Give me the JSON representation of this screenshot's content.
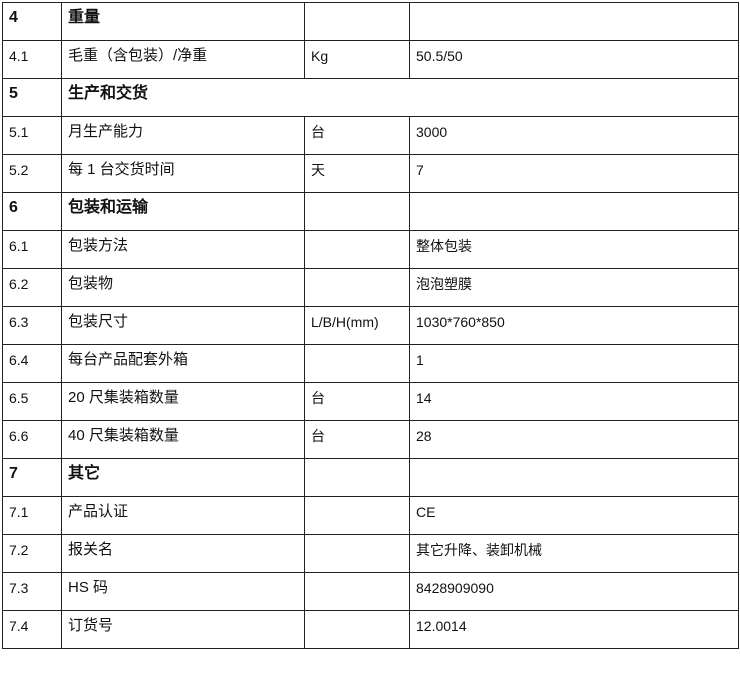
{
  "rows": [
    {
      "no": "4",
      "item": "重量",
      "unit": "",
      "value": "",
      "section": true
    },
    {
      "no": "4.1",
      "item": "毛重（含包装）/净重",
      "unit": "Kg",
      "value": "50.5/50"
    },
    {
      "no": "5",
      "item": "生产和交货",
      "section": true,
      "merged": true
    },
    {
      "no": "5.1",
      "item": "月生产能力",
      "unit": "台",
      "value": "3000"
    },
    {
      "no": "5.2",
      "item": "每 1 台交货时间",
      "unit": "天",
      "value": "7"
    },
    {
      "no": "6",
      "item": "包装和运输",
      "unit": "",
      "value": "",
      "section": true
    },
    {
      "no": "6.1",
      "item": "包装方法",
      "unit": "",
      "value": "整体包装"
    },
    {
      "no": "6.2",
      "item": "包装物",
      "unit": "",
      "value": "泡泡塑膜"
    },
    {
      "no": "6.3",
      "item": "包装尺寸",
      "unit": "L/B/H(mm)",
      "value": "1030*760*850"
    },
    {
      "no": "6.4",
      "item": "每台产品配套外箱",
      "unit": "",
      "value": "1"
    },
    {
      "no": "6.5",
      "item": "20 尺集装箱数量",
      "unit": "台",
      "value": "14"
    },
    {
      "no": "6.6",
      "item": "40 尺集装箱数量",
      "unit": "台",
      "value": "28"
    },
    {
      "no": "7",
      "item": "其它",
      "unit": "",
      "value": "",
      "section": true
    },
    {
      "no": "7.1",
      "item": "产品认证",
      "unit": "",
      "value": "CE"
    },
    {
      "no": "7.2",
      "item": "报关名",
      "unit": "",
      "value": "其它升降、装卸机械"
    },
    {
      "no": "7.3",
      "item": "HS 码",
      "unit": "",
      "value": "8428909090"
    },
    {
      "no": "7.4",
      "item": "订货号",
      "unit": "",
      "value": "12.0014"
    }
  ]
}
